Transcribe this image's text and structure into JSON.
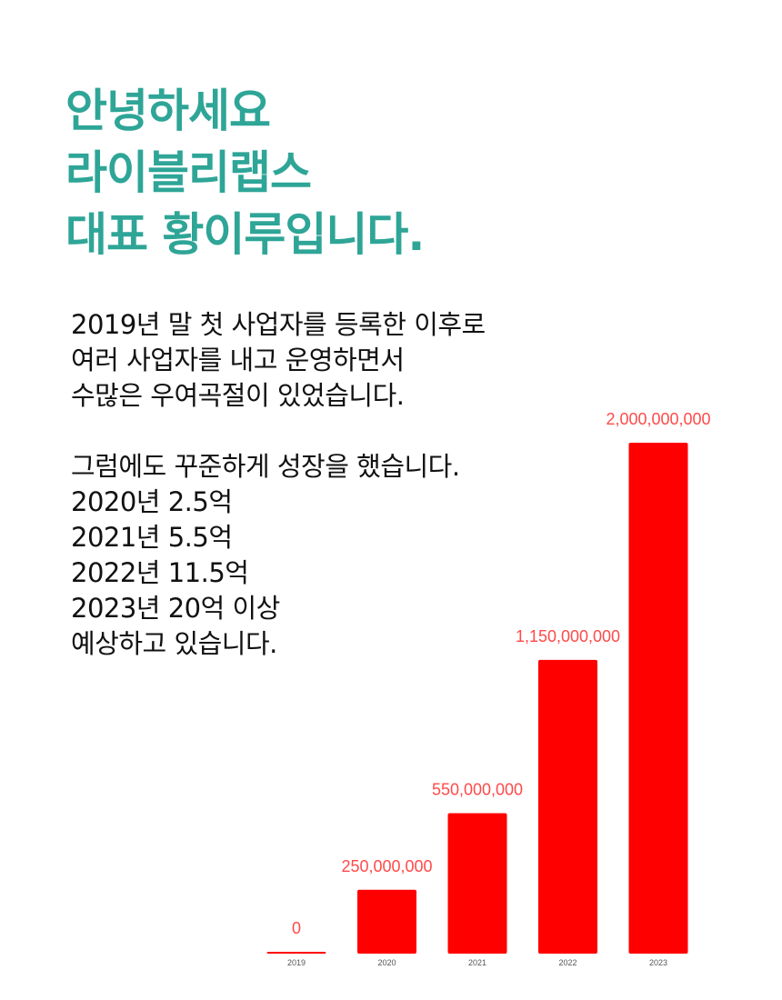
{
  "heading": {
    "lines": [
      "안녕하세요",
      "라이블리랩스",
      "대표 황이루입니다."
    ]
  },
  "body": {
    "lines": [
      "2019년 말 첫 사업자를 등록한 이후로",
      "여러 사업자를 내고 운영하면서",
      "수많은 우여곡절이 있었습니다.",
      "",
      "그럼에도 꾸준하게 성장을 했습니다.",
      "2020년 2.5억",
      "2021년 5.5억",
      "2022년 11.5억",
      "2023년 20억 이상",
      "예상하고 있습니다."
    ]
  },
  "colors": {
    "accent": "#2ea597",
    "bar": "#ff0000",
    "bar_label": "#ff4a4a"
  },
  "chart_data": {
    "type": "bar",
    "categories": [
      "2019",
      "2020",
      "2021",
      "2022",
      "2023"
    ],
    "values": [
      0,
      250000000,
      550000000,
      1150000000,
      2000000000
    ],
    "data_labels": [
      "0",
      "250,000,000",
      "550,000,000",
      "1,150,000,000",
      "2,000,000,000"
    ],
    "title": "",
    "xlabel": "",
    "ylabel": "",
    "ylim": [
      0,
      2000000000
    ],
    "grid": false,
    "legend": "none"
  }
}
